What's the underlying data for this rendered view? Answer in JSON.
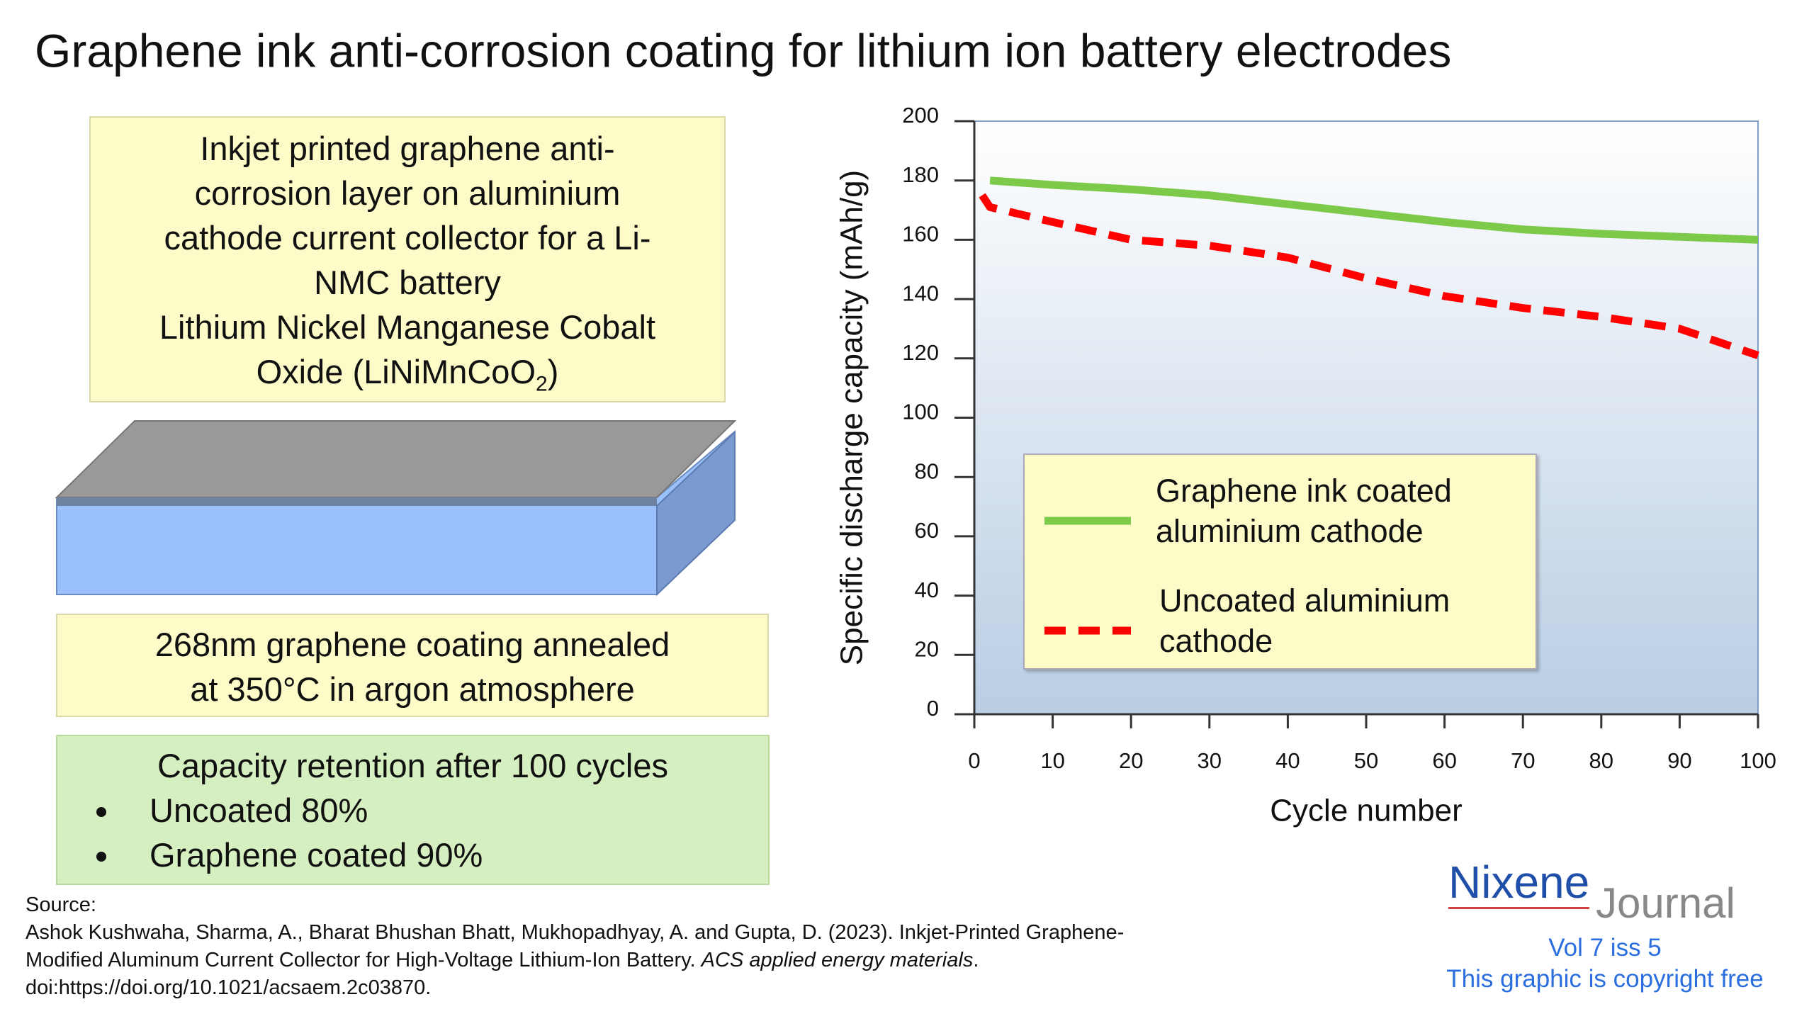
{
  "title": "Graphene ink anti-corrosion coating for lithium ion battery electrodes",
  "box1": {
    "text": "Inkjet printed graphene anti-corrosion layer on aluminium cathode current collector for a Li-NMC battery",
    "formula_a": "Lithium Nickel Manganese Cobalt Oxide (LiNiMnCoO",
    "formula_sub": "2",
    "formula_b": ")"
  },
  "box2": {
    "text": "268nm graphene coating annealed at 350°C in argon atmosphere"
  },
  "box3": {
    "heading": "Capacity retention after 100 cycles",
    "items": [
      "Uncoated 80%",
      "Graphene coated 90%"
    ]
  },
  "source": {
    "label": "Source:",
    "citation_a": "Ashok Kushwaha, Sharma, A., Bharat Bhushan Bhatt, Mukhopadhyay, A. and Gupta, D. (2023). Inkjet-Printed Graphene-Modified Aluminum Current Collector for High-Voltage Lithium-Ion Battery.",
    "citation_journal": "ACS applied energy materials",
    "citation_b": ". doi:https://doi.org/10.1021/acsaem.2c03870."
  },
  "logo": {
    "name_a": "Nixene",
    "name_b": "Journal",
    "issue": "Vol 7 iss 5",
    "note": "This graphic is copyright free"
  },
  "chart_data": {
    "type": "line",
    "x": [
      1,
      2,
      10,
      20,
      30,
      40,
      50,
      60,
      70,
      80,
      90,
      100
    ],
    "series": [
      {
        "name": "Graphene ink coated aluminium cathode",
        "color": "#7dc94a",
        "style": "solid",
        "values": [
          null,
          180,
          178.5,
          177,
          175,
          172,
          169,
          166,
          163.5,
          162,
          161,
          160
        ]
      },
      {
        "name": "Uncoated aluminium cathode",
        "color": "#ff0000",
        "style": "dashed",
        "values": [
          175,
          171,
          166,
          160,
          158,
          154,
          147,
          141,
          137,
          134,
          130,
          121
        ]
      }
    ],
    "xlabel": "Cycle number",
    "ylabel": "Specific discharge capacity (mAh/g)",
    "xlim": [
      0,
      100
    ],
    "xticks": [
      0,
      10,
      20,
      30,
      40,
      50,
      60,
      70,
      80,
      90,
      100
    ],
    "ylim": [
      0,
      200
    ],
    "yticks": [
      0,
      20,
      40,
      60,
      80,
      100,
      120,
      140,
      160,
      180,
      200
    ]
  }
}
